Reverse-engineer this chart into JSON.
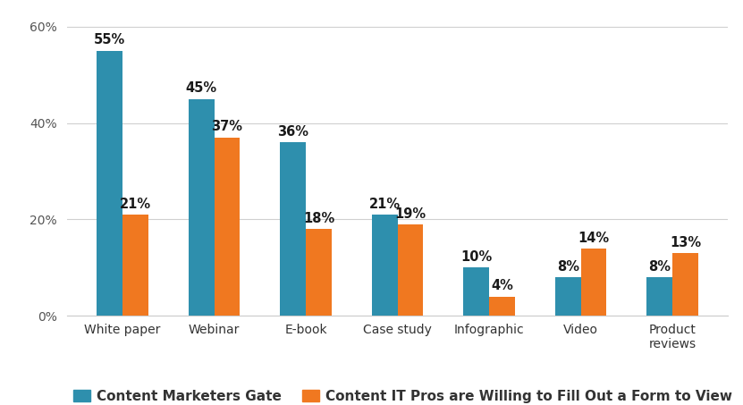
{
  "categories": [
    "White paper",
    "Webinar",
    "E-book",
    "Case study",
    "Infographic",
    "Video",
    "Product\nreviews"
  ],
  "gate_values": [
    55,
    45,
    36,
    21,
    10,
    8,
    8
  ],
  "willing_values": [
    21,
    37,
    18,
    19,
    4,
    14,
    13
  ],
  "gate_color": "#2e8fad",
  "willing_color": "#f07820",
  "ylim": [
    0,
    63
  ],
  "yticks": [
    0,
    20,
    40,
    60
  ],
  "ytick_labels": [
    "0%",
    "20%",
    "40%",
    "60%"
  ],
  "legend_gate": "Content Marketers Gate",
  "legend_willing": "Content IT Pros are Willing to Fill Out a Form to View",
  "background_color": "#ffffff",
  "grid_color": "#d0d0d0",
  "bar_width": 0.28,
  "label_fontsize": 10.5,
  "tick_fontsize": 10,
  "legend_fontsize": 11
}
